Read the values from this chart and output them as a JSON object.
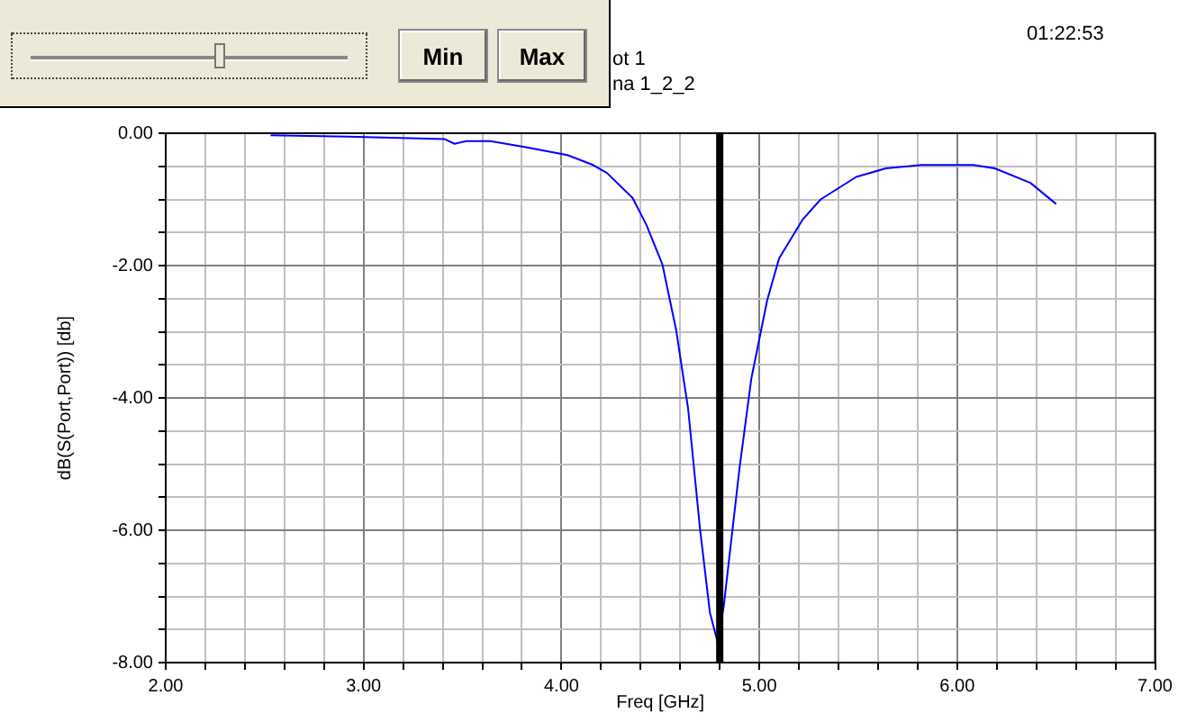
{
  "chart_data": {
    "type": "line",
    "xlabel": "Freq [GHz]",
    "ylabel": "dB(S(Port,Port)) [db]",
    "annotations": [
      "ot 1",
      "na 1_2_2",
      "01:22:53",
      "Min",
      "Max"
    ],
    "xlim": [
      2,
      7
    ],
    "ylim": [
      -8,
      0
    ],
    "xticks": [
      {
        "value": 2,
        "label": "2.00"
      },
      {
        "value": 2.2,
        "label": null
      },
      {
        "value": 2.4,
        "label": null
      },
      {
        "value": 2.6,
        "label": null
      },
      {
        "value": 2.8,
        "label": null
      },
      {
        "value": 3,
        "label": "3.00"
      },
      {
        "value": 3.2,
        "label": null
      },
      {
        "value": 3.4,
        "label": null
      },
      {
        "value": 3.6,
        "label": null
      },
      {
        "value": 3.8,
        "label": null
      },
      {
        "value": 4,
        "label": "4.00"
      },
      {
        "value": 4.2,
        "label": null
      },
      {
        "value": 4.4,
        "label": null
      },
      {
        "value": 4.6,
        "label": null
      },
      {
        "value": 4.8,
        "label": null
      },
      {
        "value": 5,
        "label": "5.00"
      },
      {
        "value": 5.2,
        "label": null
      },
      {
        "value": 5.4,
        "label": null
      },
      {
        "value": 5.6,
        "label": null
      },
      {
        "value": 5.8,
        "label": null
      },
      {
        "value": 6,
        "label": "6.00"
      },
      {
        "value": 6.2,
        "label": null
      },
      {
        "value": 6.4,
        "label": null
      },
      {
        "value": 6.6,
        "label": null
      },
      {
        "value": 6.8,
        "label": null
      },
      {
        "value": 7,
        "label": "7.00"
      }
    ],
    "yticks": [
      {
        "value": -8,
        "label": "-8.00"
      },
      {
        "value": -7.5,
        "label": null
      },
      {
        "value": -7,
        "label": null
      },
      {
        "value": -6.5,
        "label": null
      },
      {
        "value": -6,
        "label": "-6.00"
      },
      {
        "value": -5.5,
        "label": null
      },
      {
        "value": -5,
        "label": null
      },
      {
        "value": -4.5,
        "label": null
      },
      {
        "value": -4,
        "label": "-4.00"
      },
      {
        "value": -3.5,
        "label": null
      },
      {
        "value": -3,
        "label": null
      },
      {
        "value": -2.5,
        "label": null
      },
      {
        "value": -2,
        "label": "-2.00"
      },
      {
        "value": -1.5,
        "label": null
      },
      {
        "value": -1,
        "label": null
      },
      {
        "value": -0.5,
        "label": null
      },
      {
        "value": 0,
        "label": "0.00"
      }
    ],
    "grid": true,
    "legend": false,
    "marker": "none",
    "line_style": "solid",
    "ref_lines": [
      {
        "axis": "x",
        "value": 4.8,
        "color": "#000000"
      }
    ],
    "series": [
      {
        "color": "#0000ff",
        "x": [
          2.53,
          2.92,
          3.41,
          3.46,
          3.52,
          3.64,
          3.82,
          4.03,
          4.16,
          4.23,
          4.36,
          4.43,
          4.51,
          4.58,
          4.64,
          4.7,
          4.75,
          4.79,
          4.82,
          4.9,
          4.96,
          5.04,
          5.1,
          5.22,
          5.31,
          5.49,
          5.64,
          5.82,
          6.08,
          6.19,
          6.37,
          6.5
        ],
        "values": [
          -0.03,
          -0.05,
          -0.09,
          -0.16,
          -0.12,
          -0.12,
          -0.21,
          -0.33,
          -0.48,
          -0.6,
          -0.98,
          -1.39,
          -1.98,
          -2.98,
          -4.16,
          -5.97,
          -7.24,
          -7.7,
          -7.15,
          -5.06,
          -3.7,
          -2.52,
          -1.89,
          -1.3,
          -1,
          -0.66,
          -0.53,
          -0.48,
          -0.48,
          -0.53,
          -0.75,
          -1.07
        ]
      }
    ]
  }
}
